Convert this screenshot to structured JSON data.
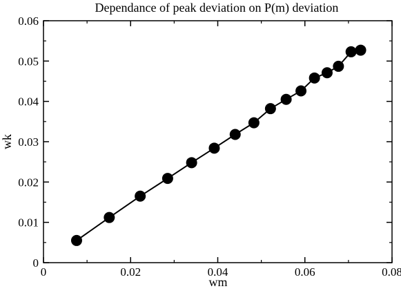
{
  "chart_data": {
    "type": "scatter",
    "title": "Dependance of peak deviation on P(m) deviation",
    "xlabel": "wm",
    "ylabel": "wk",
    "xlim": [
      0,
      0.08
    ],
    "ylim": [
      0,
      0.06
    ],
    "x_ticks": [
      "0",
      "0.02",
      "0.04",
      "0.06",
      "0.08"
    ],
    "y_ticks": [
      "0",
      "0.01",
      "0.02",
      "0.03",
      "0.04",
      "0.05",
      "0.06"
    ],
    "grid": false,
    "series": [
      {
        "marker": "filled-circle",
        "line": "solid",
        "color": "#000000",
        "x": [
          0.0076,
          0.0151,
          0.0222,
          0.0285,
          0.034,
          0.0392,
          0.044,
          0.0483,
          0.0521,
          0.0557,
          0.0591,
          0.0622,
          0.0651,
          0.0677,
          0.0706,
          0.0728
        ],
        "y": [
          0.0055,
          0.0112,
          0.0165,
          0.0209,
          0.0248,
          0.0284,
          0.0318,
          0.0347,
          0.0382,
          0.0405,
          0.0426,
          0.0458,
          0.0471,
          0.0487,
          0.0523,
          0.0527
        ]
      }
    ]
  }
}
